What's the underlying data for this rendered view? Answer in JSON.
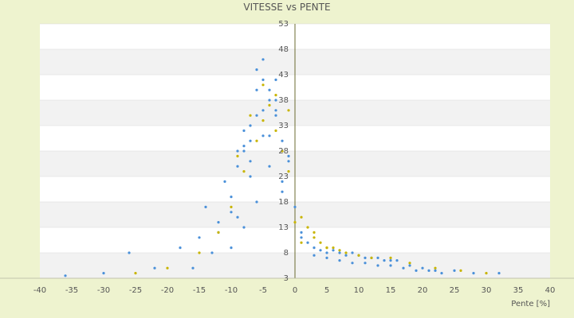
{
  "chart_data": {
    "type": "scatter",
    "title": "VITESSE vs PENTE",
    "xlabel": "Pente [%]",
    "ylabel": "",
    "xlim": [
      -40,
      40
    ],
    "ylim": [
      3,
      53
    ],
    "x_ticks": [
      "-40",
      "-35",
      "-30",
      "-25",
      "-20",
      "-15",
      "-10",
      "-5",
      "0",
      "5",
      "10",
      "15",
      "20",
      "25",
      "30",
      "35",
      "40"
    ],
    "y_ticks": [
      "3",
      "8",
      "13",
      "18",
      "23",
      "28",
      "33",
      "38",
      "43",
      "48",
      "53"
    ],
    "grid": true,
    "band_colors": [
      "#ffffff",
      "#f2f2f2"
    ],
    "series": [
      {
        "color": "#4a90d9",
        "x": [
          -36,
          -30,
          -26,
          -22,
          -18,
          -15,
          -12,
          -10,
          -9,
          -8,
          -7,
          -6,
          -5,
          -4,
          -3,
          -2,
          -1,
          0,
          1,
          2,
          3,
          4,
          5,
          6,
          7,
          8,
          9,
          10,
          11,
          12,
          13,
          14,
          15,
          16,
          18,
          20,
          22,
          25,
          28,
          32,
          -14,
          -11,
          -8,
          -6,
          -4,
          -2,
          -12,
          -9,
          -7,
          -5,
          -3,
          -1,
          -10,
          -8,
          -6,
          -4,
          -2,
          1,
          3,
          5,
          7,
          9,
          11,
          13,
          15,
          17,
          19,
          21,
          23,
          -16,
          -13,
          -10,
          -7,
          -5,
          -3,
          -6,
          -5,
          -4,
          -3,
          -7,
          -8,
          -9
        ],
        "y": [
          3.5,
          4,
          8,
          5,
          9,
          11,
          14,
          19,
          25,
          29,
          33,
          40,
          42,
          38,
          35,
          30,
          26,
          17,
          11,
          10,
          9,
          8.5,
          8,
          8.5,
          8,
          7.5,
          8,
          7.5,
          7,
          7,
          7,
          6.5,
          6.5,
          6.5,
          5.5,
          5,
          4.5,
          4.5,
          4,
          4,
          17,
          22,
          28,
          35,
          31,
          22,
          12,
          15,
          23,
          31,
          38,
          27,
          9,
          13,
          18,
          25,
          20,
          12,
          7.5,
          7,
          6.5,
          6,
          6,
          5.5,
          5.5,
          5,
          4.5,
          4.5,
          4,
          5,
          8,
          16,
          26,
          36,
          42,
          44,
          46,
          40,
          36,
          30,
          32,
          28
        ]
      },
      {
        "color": "#c8b400",
        "x": [
          -25,
          -20,
          -15,
          -12,
          -10,
          -8,
          -6,
          -5,
          -4,
          -3,
          -2,
          -1,
          0,
          1,
          2,
          3,
          4,
          5,
          6,
          8,
          10,
          12,
          15,
          18,
          22,
          26,
          30,
          -9,
          -7,
          -5,
          -3,
          -1,
          1,
          3,
          5,
          7
        ],
        "y": [
          4,
          5,
          8,
          12,
          17,
          24,
          30,
          34,
          37,
          32,
          28,
          24,
          14,
          10,
          13,
          12,
          10,
          9,
          9,
          8,
          7.5,
          7,
          7,
          6,
          5,
          4.5,
          4,
          27,
          35,
          41,
          39,
          36,
          15,
          11,
          9,
          8.5
        ]
      }
    ]
  }
}
